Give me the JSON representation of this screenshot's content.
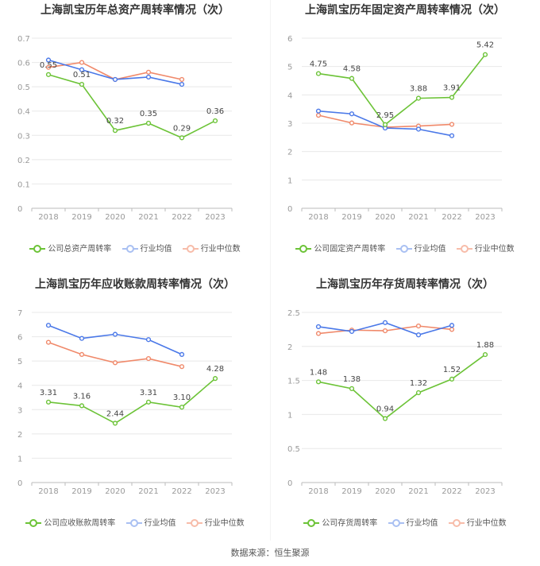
{
  "colors": {
    "company": "#6cc337",
    "avg": "#4a78e8",
    "median": "#f0896a",
    "axis": "#999999",
    "grid": "#e8e8e8"
  },
  "chart_data": [
    {
      "type": "line",
      "title": "上海凯宝历年总资产周转率情况（次）",
      "categories": [
        "2018",
        "2019",
        "2020",
        "2021",
        "2022",
        "2023"
      ],
      "ylim": [
        0,
        0.7
      ],
      "yticks": [
        "0",
        "0.1",
        "0.2",
        "0.3",
        "0.4",
        "0.5",
        "0.6",
        "0.7"
      ],
      "grid": true,
      "legend_position": "bottom",
      "series": [
        {
          "name": "公司总资产周转率",
          "values": [
            0.55,
            0.51,
            0.32,
            0.35,
            0.29,
            0.36
          ],
          "labels": [
            "0.55",
            "0.51",
            "0.32",
            "0.35",
            "0.29",
            "0.36"
          ]
        },
        {
          "name": "行业均值",
          "values": [
            0.61,
            0.57,
            0.53,
            0.54,
            0.51,
            null
          ]
        },
        {
          "name": "行业中位数",
          "values": [
            0.58,
            0.6,
            0.53,
            0.56,
            0.53,
            null
          ]
        }
      ]
    },
    {
      "type": "line",
      "title": "上海凯宝历年固定资产周转率情况（次）",
      "categories": [
        "2018",
        "2019",
        "2020",
        "2021",
        "2022",
        "2023"
      ],
      "ylim": [
        0,
        6
      ],
      "yticks": [
        "0",
        "1",
        "2",
        "3",
        "4",
        "5",
        "6"
      ],
      "grid": true,
      "legend_position": "bottom",
      "series": [
        {
          "name": "公司固定资产周转率",
          "values": [
            4.75,
            4.58,
            2.95,
            3.88,
            3.91,
            5.42
          ],
          "labels": [
            "4.75",
            "4.58",
            "2.95",
            "3.88",
            "3.91",
            "5.42"
          ]
        },
        {
          "name": "行业均值",
          "values": [
            3.43,
            3.33,
            2.83,
            2.79,
            2.56,
            null
          ]
        },
        {
          "name": "行业中位数",
          "values": [
            3.28,
            3.01,
            2.86,
            2.9,
            2.96,
            null
          ]
        }
      ]
    },
    {
      "type": "line",
      "title": "上海凯宝历年应收账款周转率情况（次）",
      "categories": [
        "2018",
        "2019",
        "2020",
        "2021",
        "2022",
        "2023"
      ],
      "ylim": [
        0,
        7
      ],
      "yticks": [
        "0",
        "1",
        "2",
        "3",
        "4",
        "5",
        "6",
        "7"
      ],
      "grid": true,
      "legend_position": "bottom",
      "series": [
        {
          "name": "公司应收账款周转率",
          "values": [
            3.31,
            3.16,
            2.44,
            3.31,
            3.1,
            4.28
          ],
          "labels": [
            "3.31",
            "3.16",
            "2.44",
            "3.31",
            "3.10",
            "4.28"
          ]
        },
        {
          "name": "行业均值",
          "values": [
            6.47,
            5.93,
            6.1,
            5.88,
            5.27,
            null
          ]
        },
        {
          "name": "行业中位数",
          "values": [
            5.77,
            5.27,
            4.93,
            5.1,
            4.77,
            null
          ]
        }
      ]
    },
    {
      "type": "line",
      "title": "上海凯宝历年存货周转率情况（次）",
      "categories": [
        "2018",
        "2019",
        "2020",
        "2021",
        "2022",
        "2023"
      ],
      "ylim": [
        0,
        2.5
      ],
      "yticks": [
        "0",
        "0.5",
        "1",
        "1.5",
        "2",
        "2.5"
      ],
      "grid": true,
      "legend_position": "bottom",
      "series": [
        {
          "name": "公司存货周转率",
          "values": [
            1.48,
            1.38,
            0.94,
            1.32,
            1.52,
            1.88
          ],
          "labels": [
            "1.48",
            "1.38",
            "0.94",
            "1.32",
            "1.52",
            "1.88"
          ]
        },
        {
          "name": "行业均值",
          "values": [
            2.29,
            2.22,
            2.35,
            2.17,
            2.31,
            null
          ]
        },
        {
          "name": "行业中位数",
          "values": [
            2.19,
            2.24,
            2.23,
            2.3,
            2.25,
            null
          ]
        }
      ]
    }
  ],
  "footer": "数据来源：恒生聚源"
}
